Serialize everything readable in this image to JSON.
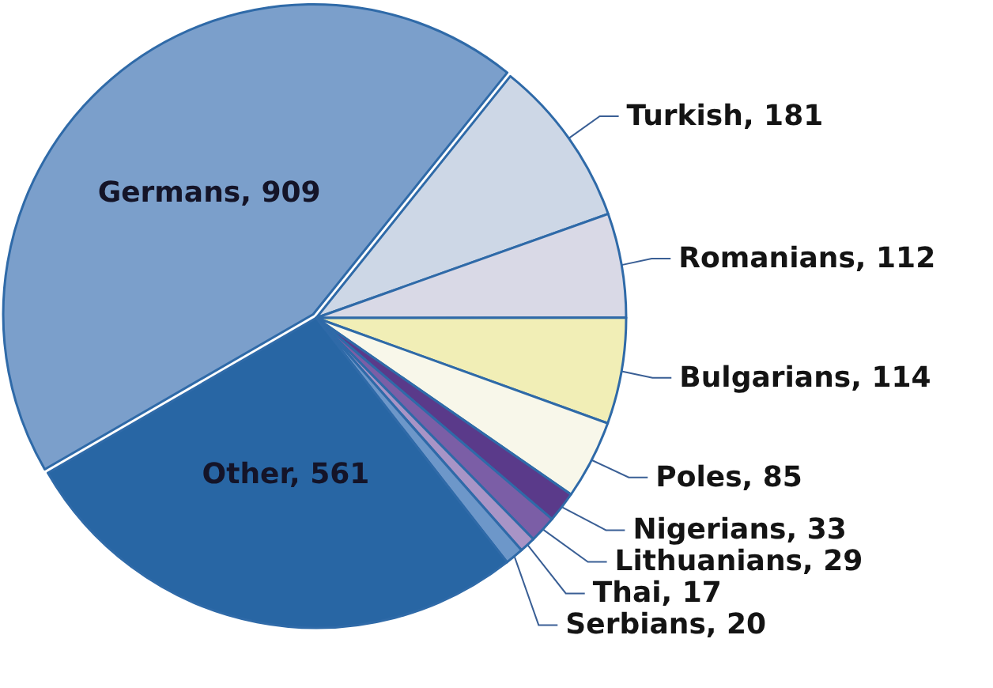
{
  "chart_data": {
    "type": "pie",
    "categories": [
      "Germans, 909",
      "Turkish, 181",
      "Romanians, 112",
      "Bulgarians, 114",
      "Poles, 85",
      "Nigerians, 33",
      "Lithuanians, 29",
      "Thai, 17",
      "Serbians, 20",
      "Other, 561"
    ],
    "values": [
      909,
      181,
      112,
      114,
      85,
      33,
      29,
      17,
      20,
      561
    ],
    "colors": [
      "#7b9fcb",
      "#cdd7e6",
      "#d9d9e6",
      "#f1eeb6",
      "#f8f7ea",
      "#5a3a8a",
      "#7b5ea6",
      "#a894c6",
      "#6d97c9",
      "#2866a4"
    ]
  }
}
